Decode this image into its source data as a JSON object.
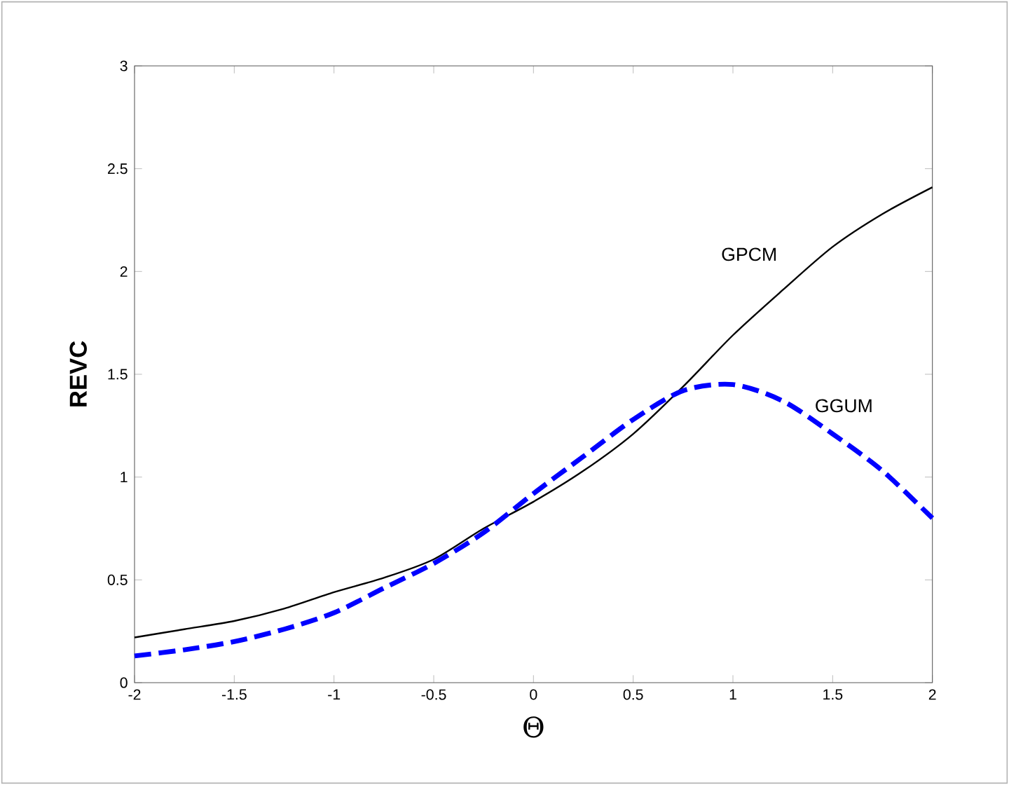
{
  "chart_data": {
    "type": "line",
    "xlabel": "Θ",
    "ylabel": "REVC",
    "x": [
      -2,
      -1.75,
      -1.5,
      -1.25,
      -1,
      -0.75,
      -0.5,
      -0.25,
      0,
      0.25,
      0.5,
      0.75,
      1,
      1.25,
      1.5,
      1.75,
      2
    ],
    "series": [
      {
        "name": "GPCM",
        "color": "#000000",
        "line_style": "solid",
        "values": [
          0.22,
          0.26,
          0.3,
          0.36,
          0.44,
          0.51,
          0.6,
          0.75,
          0.88,
          1.03,
          1.21,
          1.44,
          1.69,
          1.91,
          2.12,
          2.28,
          2.41
        ]
      },
      {
        "name": "GGUM",
        "color": "#0000ff",
        "line_style": "dashed",
        "values": [
          0.13,
          0.16,
          0.2,
          0.26,
          0.34,
          0.46,
          0.58,
          0.73,
          0.92,
          1.1,
          1.28,
          1.42,
          1.45,
          1.37,
          1.21,
          1.03,
          0.8
        ]
      }
    ],
    "xlim": [
      -2,
      2
    ],
    "ylim": [
      0,
      3
    ],
    "xticks": [
      -2,
      -1.5,
      -1,
      -0.5,
      0,
      0.5,
      1,
      1.5,
      2
    ],
    "yticks": [
      0,
      0.5,
      1,
      1.5,
      2,
      2.5,
      3
    ],
    "grid": false,
    "marker": "none"
  }
}
